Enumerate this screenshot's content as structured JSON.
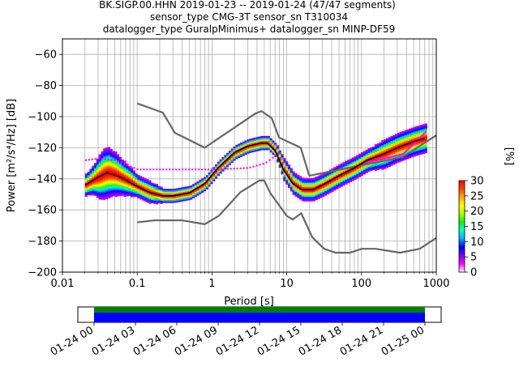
{
  "title": {
    "line1": "BK.SIGP.00.HHN   2019-01-23 -- 2019-01-24  (47/47 segments)",
    "line2": "sensor_type CMG-3T sensor_sn T310034",
    "line3": "datalogger_type GuralpMinimus+ datalogger_sn MINP-DF59"
  },
  "chart_data": [
    {
      "type": "heatmap",
      "title": "",
      "xlabel": "Period [s]",
      "ylabel": "Power [m²/s⁴/Hz] [dB]",
      "xscale": "log",
      "xlim": [
        0.01,
        1000
      ],
      "ylim": [
        -200,
        -50
      ],
      "x_tick_labels": [
        "0.01",
        "0.1",
        "1",
        "10",
        "100",
        "1000"
      ],
      "x_tick_values": [
        0.01,
        0.1,
        1,
        10,
        100,
        1000
      ],
      "y_ticks": [
        -60,
        -80,
        -100,
        -120,
        -140,
        -160,
        -180,
        -200
      ],
      "grid": true,
      "colorbar": {
        "label": "[%]",
        "range": [
          0,
          30
        ],
        "ticks": [
          0,
          5,
          10,
          15,
          20,
          25,
          30
        ],
        "colors": [
          "#ffffff",
          "#ff00ff",
          "#8000ff",
          "#0000ff",
          "#00aaff",
          "#00ffcc",
          "#00ff00",
          "#aaff00",
          "#ffff00",
          "#ffaa00",
          "#ff4400",
          "#ff0000"
        ]
      },
      "series": [
        {
          "name": "noise-model-high",
          "color": "#666666",
          "x": [
            0.1,
            0.22,
            0.32,
            0.8,
            3.8,
            4.6,
            6.3,
            7.9,
            15.4,
            20,
            354.8,
            1000
          ],
          "y": [
            -91.5,
            -97.4,
            -110.5,
            -120,
            -98,
            -96.5,
            -101,
            -113.5,
            -120,
            -138,
            -126,
            -112
          ]
        },
        {
          "name": "noise-model-low",
          "color": "#666666",
          "x": [
            0.1,
            0.17,
            0.4,
            0.8,
            1.24,
            2.4,
            4.3,
            5.0,
            6.0,
            10.0,
            12.0,
            15.6,
            21.9,
            31.6,
            45,
            70,
            101,
            154,
            328,
            600,
            1000
          ],
          "y": [
            -168,
            -166.7,
            -166.7,
            -169.2,
            -163.7,
            -148.6,
            -141.1,
            -141.1,
            -149,
            -163.8,
            -166.2,
            -162.1,
            -177.5,
            -185,
            -187.5,
            -187.5,
            -185,
            -185,
            -187.5,
            -185,
            -178
          ]
        },
        {
          "name": "mode-curve",
          "color": "#000000",
          "x": [
            0.02,
            0.03,
            0.04,
            0.06,
            0.1,
            0.15,
            0.22,
            0.3,
            0.5,
            0.8,
            1.2,
            2,
            3,
            4.5,
            5.5,
            7,
            9,
            12,
            16,
            22,
            30,
            50,
            80,
            120,
            200,
            300,
            500,
            700
          ],
          "y": [
            -144,
            -139,
            -136,
            -139,
            -145,
            -149,
            -151,
            -151,
            -149,
            -143,
            -133,
            -123,
            -119,
            -117,
            -117,
            -122,
            -134,
            -143,
            -147,
            -147,
            -144,
            -138,
            -133,
            -128,
            -124,
            -120,
            -116,
            -114
          ]
        }
      ],
      "density_ridge": {
        "x": [
          0.02,
          0.025,
          0.03,
          0.035,
          0.04,
          0.05,
          0.06,
          0.08,
          0.1,
          0.15,
          0.22,
          0.3,
          0.5,
          0.8,
          1.2,
          2,
          3,
          4.5,
          5.5,
          7,
          9,
          12,
          16,
          22,
          30,
          50,
          80,
          120,
          200,
          300,
          500,
          700
        ],
        "center": [
          -144,
          -141,
          -139,
          -137,
          -136,
          -137,
          -139,
          -142,
          -145,
          -149,
          -151,
          -151,
          -149,
          -143,
          -133,
          -123,
          -119,
          -117,
          -117,
          -122,
          -134,
          -143,
          -147,
          -147,
          -144,
          -138,
          -133,
          -128,
          -124,
          -120,
          -116,
          -114
        ],
        "spread": [
          3,
          4,
          6,
          7,
          7,
          6,
          5,
          4,
          3,
          3,
          2,
          2,
          2,
          2,
          2,
          2,
          2,
          2,
          2,
          2,
          3,
          3,
          3,
          3,
          3,
          3,
          3,
          3,
          4,
          4,
          4,
          4
        ],
        "outliers": [
          {
            "x": [
              0.02,
              0.03,
              0.05,
              0.1,
              0.3,
              1,
              3,
              5,
              7
            ],
            "y": [
              -128,
              -127,
              -128,
              -134,
              -134,
              -134,
              -133,
              -130,
              -125
            ]
          },
          {
            "x": [
              100,
              200,
              350,
              500,
              700
            ],
            "y": [
              -130,
              -127,
              -124,
              -117,
              -110
            ]
          }
        ]
      }
    },
    {
      "type": "timeline",
      "x_tick_labels": [
        "01-24 00",
        "01-24 03",
        "01-24 06",
        "01-24 09",
        "01-24 12",
        "01-24 15",
        "01-24 18",
        "01-24 21",
        "01-25 00"
      ],
      "bars": [
        {
          "name": "data-coverage",
          "color": "#008000"
        },
        {
          "name": "psd-coverage",
          "color": "#0000ff"
        }
      ]
    }
  ]
}
